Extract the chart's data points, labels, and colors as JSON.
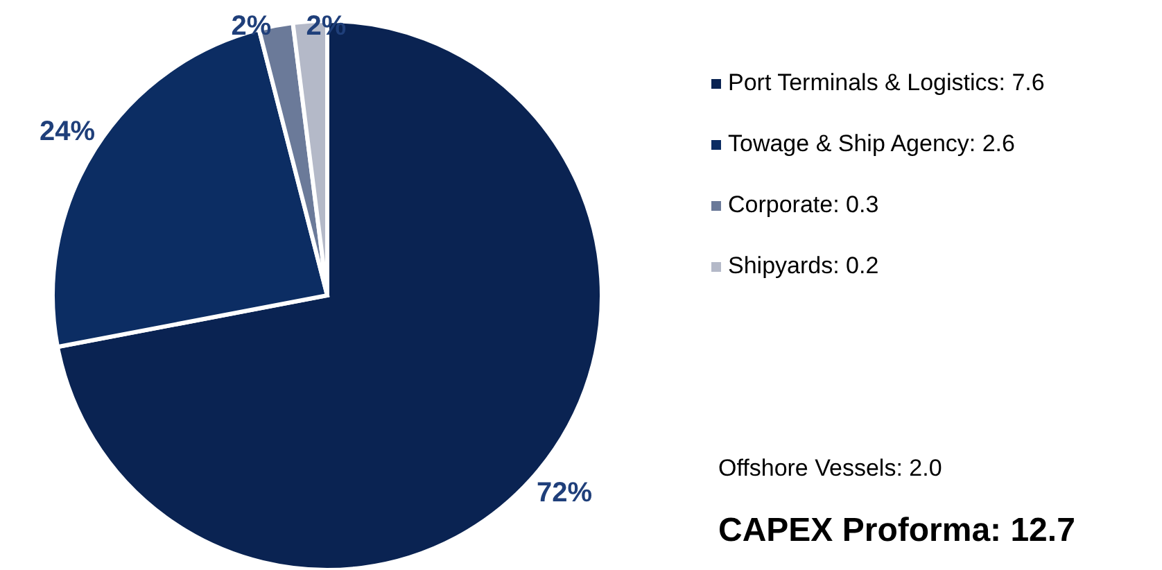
{
  "chart_data": {
    "type": "pie",
    "categories": [
      "Port Terminals & Logistics: 7.6",
      "Towage & Ship Agency: 2.6",
      "Corporate: 0.3",
      "Shipyards: 0.2"
    ],
    "values": [
      72,
      24,
      2,
      2
    ],
    "colors": [
      "#0a2352",
      "#0c2d63",
      "#6b7a99",
      "#b4b9c8"
    ],
    "value_labels": [
      "72%",
      "24%",
      "2%",
      "2%"
    ],
    "legend": "right",
    "annotations": [
      "Offshore Vessels: 2.0",
      "CAPEX Proforma: 12.7"
    ]
  }
}
